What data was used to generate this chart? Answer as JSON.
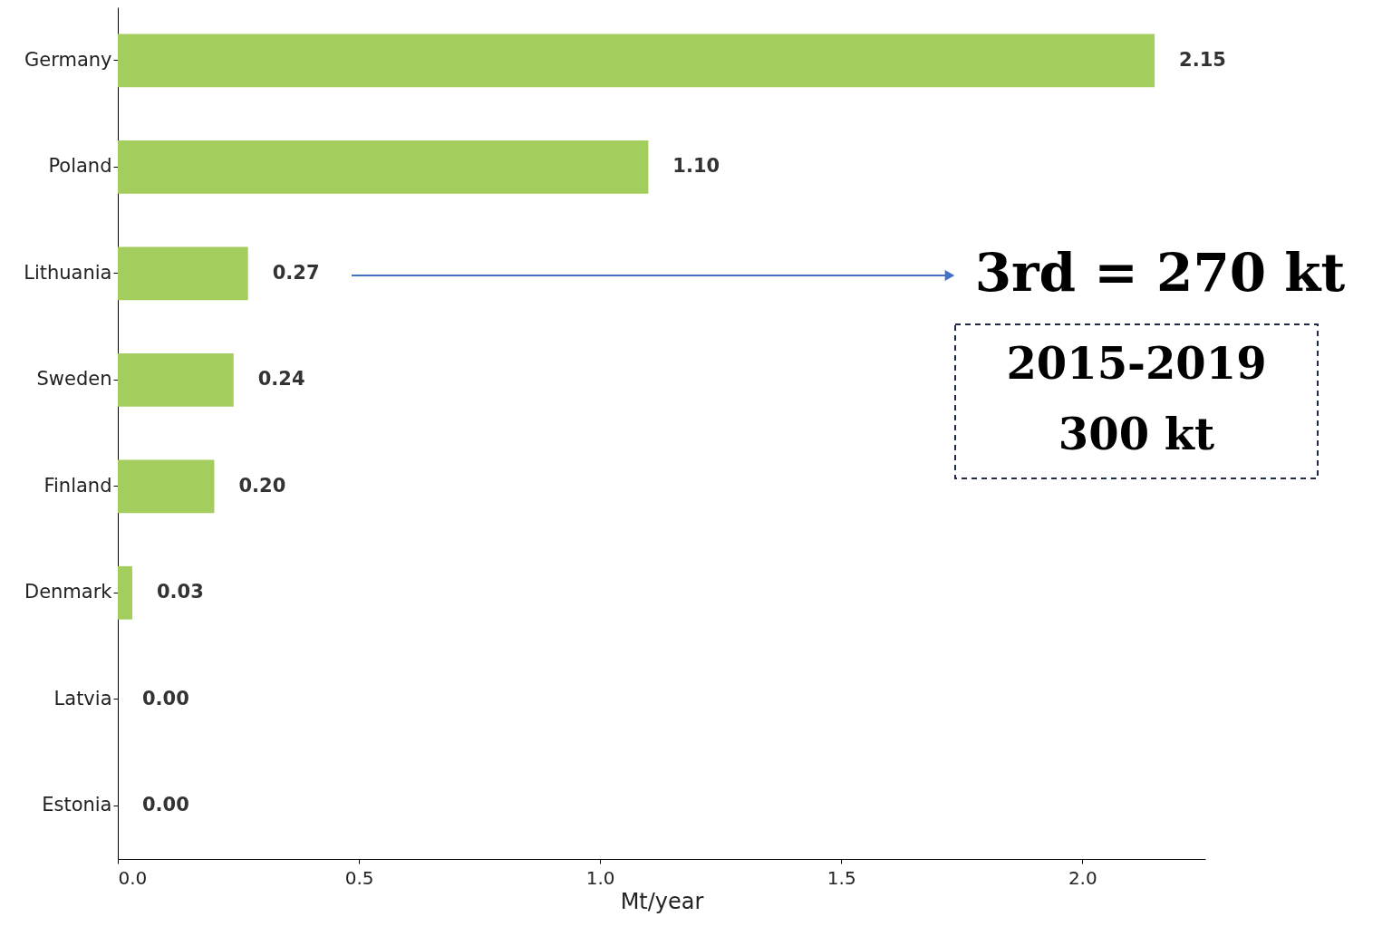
{
  "chart_data": {
    "type": "bar",
    "orientation": "horizontal",
    "xlabel": "Mt/year",
    "categories": [
      "Germany",
      "Poland",
      "Lithuania",
      "Sweden",
      "Finland",
      "Denmark",
      "Latvia",
      "Estonia"
    ],
    "series": [
      {
        "color": "#a3cd5c",
        "values": [
          2.15,
          1.1,
          0.27,
          0.24,
          0.2,
          0.03,
          0.0,
          0.0
        ],
        "value_labels": [
          "2.15",
          "1.10",
          "0.27",
          "0.24",
          "0.20",
          "0.03",
          "0.00",
          "0.00"
        ]
      }
    ],
    "xlim": [
      0,
      2.255
    ],
    "xticks": [
      {
        "value": 0,
        "label": "0.0"
      },
      {
        "value": 0.5,
        "label": "0.5"
      },
      {
        "value": 1,
        "label": "1.0"
      },
      {
        "value": 1.5,
        "label": "1.5"
      },
      {
        "value": 2,
        "label": "2.0"
      }
    ],
    "grid": false,
    "annotations": [
      "3rd = 270 kt",
      "2015-2019",
      "300 kt"
    ]
  }
}
